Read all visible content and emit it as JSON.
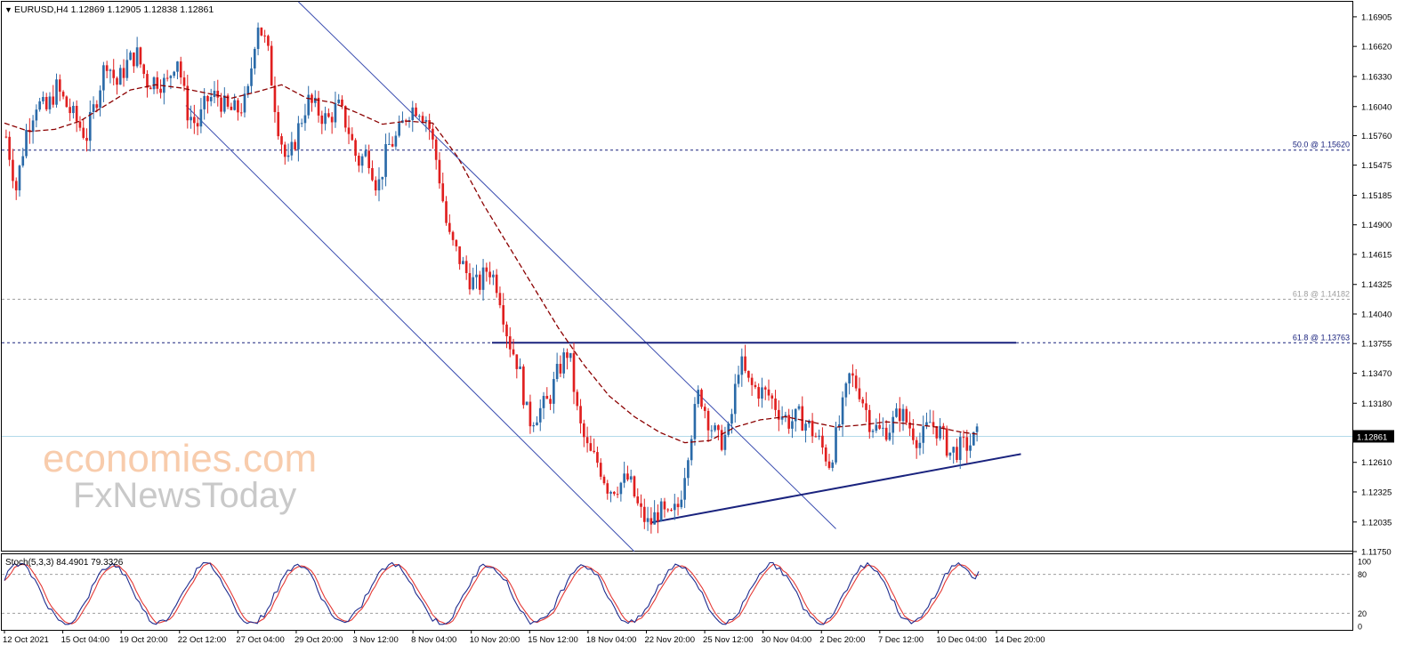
{
  "chart_data": {
    "type": "candlestick",
    "symbol_header": "EURUSD,H4  1.12869 1.12905 1.12838 1.12861",
    "current_price": 1.12861,
    "current_price_label": "1.12861",
    "ylim": [
      1.1175,
      1.1705
    ],
    "y_ticks": [
      "1.16905",
      "1.16620",
      "1.16330",
      "1.16040",
      "1.15760",
      "1.15475",
      "1.15185",
      "1.14900",
      "1.14615",
      "1.14325",
      "1.14040",
      "1.13755",
      "1.13470",
      "1.13180",
      "1.12610",
      "1.12325",
      "1.12035",
      "1.11750"
    ],
    "x_ticks": [
      "12 Oct 2021",
      "15 Oct 04:00",
      "19 Oct 20:00",
      "22 Oct 12:00",
      "27 Oct 04:00",
      "29 Oct 20:00",
      "3 Nov 12:00",
      "8 Nov 04:00",
      "10 Nov 20:00",
      "15 Nov 12:00",
      "18 Nov 04:00",
      "22 Nov 20:00",
      "25 Nov 12:00",
      "30 Nov 04:00",
      "2 Dec 20:00",
      "7 Dec 12:00",
      "10 Dec 04:00",
      "14 Dec 20:00"
    ],
    "fib_levels": [
      {
        "label": "50.0 @ 1.15620",
        "value": 1.1562,
        "color": "#1a237e"
      },
      {
        "label": "61.8 @ 1.14182",
        "value": 1.14182,
        "color": "#9e9e9e"
      },
      {
        "label": "61.8 @ 1.13763",
        "value": 1.13763,
        "color": "#1a237e"
      }
    ],
    "resistance_level": 1.13763,
    "support_trendline": {
      "from": [
        38.5,
        1.1203
      ],
      "to": [
        58.5,
        1.1263
      ]
    },
    "channel_upper": {
      "from": [
        17.5,
        1.1705
      ],
      "to": [
        49.5,
        1.1197
      ]
    },
    "channel_lower": {
      "from": [
        10.8,
        1.1605
      ],
      "to": [
        37.5,
        1.1175
      ]
    },
    "price_path": [
      [
        0,
        1.1575
      ],
      [
        0.6,
        1.1525
      ],
      [
        1.2,
        1.158
      ],
      [
        1.8,
        1.1608
      ],
      [
        2.4,
        1.16
      ],
      [
        3.0,
        1.1622
      ],
      [
        3.6,
        1.1605
      ],
      [
        4.2,
        1.159
      ],
      [
        4.8,
        1.1575
      ],
      [
        5.4,
        1.1612
      ],
      [
        6.0,
        1.165
      ],
      [
        6.6,
        1.1625
      ],
      [
        7.2,
        1.1645
      ],
      [
        7.8,
        1.1655
      ],
      [
        8.4,
        1.1628
      ],
      [
        9.0,
        1.163
      ],
      [
        9.6,
        1.1625
      ],
      [
        10.2,
        1.1655
      ],
      [
        10.8,
        1.16
      ],
      [
        11.4,
        1.1585
      ],
      [
        12.0,
        1.161
      ],
      [
        12.6,
        1.1615
      ],
      [
        13.2,
        1.16
      ],
      [
        13.8,
        1.16
      ],
      [
        14.4,
        1.161
      ],
      [
        15.0,
        1.1688
      ],
      [
        15.6,
        1.166
      ],
      [
        16.2,
        1.159
      ],
      [
        16.8,
        1.1545
      ],
      [
        17.4,
        1.158
      ],
      [
        18.0,
        1.161
      ],
      [
        18.6,
        1.16
      ],
      [
        19.2,
        1.159
      ],
      [
        19.8,
        1.1605
      ],
      [
        20.4,
        1.1585
      ],
      [
        21.0,
        1.155
      ],
      [
        21.6,
        1.156
      ],
      [
        22.2,
        1.1525
      ],
      [
        22.8,
        1.1565
      ],
      [
        23.4,
        1.1575
      ],
      [
        24.0,
        1.16
      ],
      [
        24.6,
        1.1605
      ],
      [
        25.2,
        1.159
      ],
      [
        25.8,
        1.1545
      ],
      [
        26.4,
        1.148
      ],
      [
        27.0,
        1.146
      ],
      [
        27.6,
        1.144
      ],
      [
        28.2,
        1.143
      ],
      [
        28.8,
        1.145
      ],
      [
        29.4,
        1.143
      ],
      [
        30.0,
        1.138
      ],
      [
        30.6,
        1.1355
      ],
      [
        31.2,
        1.13
      ],
      [
        31.8,
        1.131
      ],
      [
        32.4,
        1.132
      ],
      [
        33.0,
        1.135
      ],
      [
        33.6,
        1.137
      ],
      [
        34.2,
        1.13
      ],
      [
        34.8,
        1.127
      ],
      [
        35.4,
        1.126
      ],
      [
        36.0,
        1.1235
      ],
      [
        36.6,
        1.124
      ],
      [
        37.2,
        1.1245
      ],
      [
        37.8,
        1.1215
      ],
      [
        38.4,
        1.12
      ],
      [
        39.0,
        1.1215
      ],
      [
        39.6,
        1.1205
      ],
      [
        40.2,
        1.122
      ],
      [
        40.8,
        1.128
      ],
      [
        41.4,
        1.133
      ],
      [
        42.0,
        1.13
      ],
      [
        42.6,
        1.128
      ],
      [
        43.2,
        1.129
      ],
      [
        43.8,
        1.136
      ],
      [
        44.4,
        1.1335
      ],
      [
        45.0,
        1.133
      ],
      [
        45.6,
        1.1325
      ],
      [
        46.2,
        1.131
      ],
      [
        46.8,
        1.13
      ],
      [
        47.4,
        1.1305
      ],
      [
        48.0,
        1.1295
      ],
      [
        48.6,
        1.128
      ],
      [
        49.2,
        1.126
      ],
      [
        49.8,
        1.13
      ],
      [
        50.4,
        1.1345
      ],
      [
        51.0,
        1.133
      ],
      [
        51.6,
        1.13
      ],
      [
        52.2,
        1.129
      ],
      [
        52.8,
        1.1295
      ],
      [
        53.4,
        1.131
      ],
      [
        54.0,
        1.1295
      ],
      [
        54.6,
        1.128
      ],
      [
        55.2,
        1.13
      ],
      [
        55.8,
        1.129
      ],
      [
        56.4,
        1.127
      ],
      [
        57.0,
        1.1275
      ],
      [
        57.6,
        1.1279
      ],
      [
        58.0,
        1.1286
      ]
    ],
    "ma_path": [
      [
        0,
        1.1588
      ],
      [
        1.5,
        1.158
      ],
      [
        3.0,
        1.1582
      ],
      [
        4.5,
        1.159
      ],
      [
        6.0,
        1.1605
      ],
      [
        7.5,
        1.162
      ],
      [
        9.0,
        1.1625
      ],
      [
        10.5,
        1.1622
      ],
      [
        12.0,
        1.1617
      ],
      [
        13.5,
        1.1612
      ],
      [
        15.0,
        1.1618
      ],
      [
        16.5,
        1.1625
      ],
      [
        18.0,
        1.1612
      ],
      [
        19.5,
        1.1608
      ],
      [
        21.0,
        1.1598
      ],
      [
        22.5,
        1.1587
      ],
      [
        24.0,
        1.159
      ],
      [
        25.5,
        1.1588
      ],
      [
        27.0,
        1.1555
      ],
      [
        28.5,
        1.151
      ],
      [
        30.0,
        1.147
      ],
      [
        31.5,
        1.143
      ],
      [
        33.0,
        1.139
      ],
      [
        34.5,
        1.1355
      ],
      [
        36.0,
        1.1325
      ],
      [
        37.5,
        1.1305
      ],
      [
        39.0,
        1.129
      ],
      [
        40.5,
        1.128
      ],
      [
        42.0,
        1.1282
      ],
      [
        43.5,
        1.1295
      ],
      [
        45.0,
        1.1302
      ],
      [
        46.5,
        1.1305
      ],
      [
        48.0,
        1.13
      ],
      [
        49.5,
        1.1295
      ],
      [
        51.0,
        1.1297
      ],
      [
        52.5,
        1.13
      ],
      [
        54.0,
        1.1298
      ],
      [
        55.5,
        1.1295
      ],
      [
        57.0,
        1.129
      ],
      [
        58.0,
        1.1288
      ]
    ],
    "stochastic": {
      "label": "Stoch(5,3,3) 84.4901 79.3326",
      "main": 84.4901,
      "signal": 79.3326,
      "ylim": [
        0,
        100
      ],
      "ticks": [
        "100",
        "80",
        "20",
        "0"
      ],
      "levels": [
        80,
        20
      ],
      "main_color": "#1f2d8f",
      "signal_color": "#e53935"
    },
    "colors": {
      "bull": "#2a6aa8",
      "bear": "#e01f1f",
      "ma": "#8b0000",
      "trend": "#1a237e",
      "channel": "#3a4db0",
      "price_line": "#b3d9ea",
      "background": "#ffffff",
      "frame": "#000000"
    }
  },
  "watermark": {
    "line1": "economies.com",
    "line2": "FxNewsToday"
  }
}
